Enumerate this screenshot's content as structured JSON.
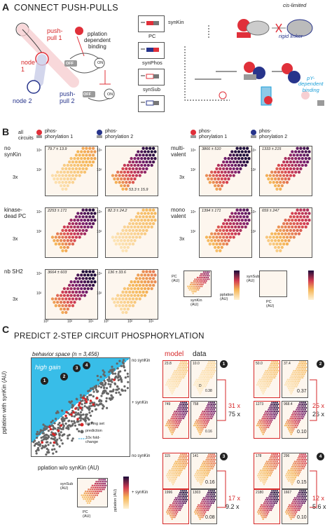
{
  "panelA": {
    "letter": "A",
    "title": "CONNECT PUSH-PULLS",
    "push_pull_1": "push-\npull 1",
    "push_pull_2": "push-\npull 2",
    "node1": "node\n1",
    "node2": "node 2",
    "pplation_dependent_binding": "pplation\ndependent\nbinding",
    "off": "OFF",
    "on": "ON",
    "parts": [
      "synKin",
      "PC",
      "synPhos",
      "synSub"
    ],
    "cis_limited": "cis-limited",
    "rigid_linker": "rigid linker",
    "py_dependent_binding": "pY-\ndependent\nbinding",
    "p": "P"
  },
  "panelB": {
    "letter": "B",
    "all_circuits": "all\ncircuits",
    "phos1": "phos-\nphorylation 1",
    "phos2": "phos-\nphorylation 2",
    "rows_left": [
      {
        "label": "no\nsynKin",
        "stat1": "79.7 ± 13.9",
        "stat2": "53.3 ± 15.9"
      },
      {
        "label": "kinase-\ndead PC",
        "stat1": "2253 ± 171",
        "stat2": "82.3 ± 24.2"
      },
      {
        "label": "nb SH2",
        "stat1": "3664 ± 603",
        "stat2": "136 ± 33.6"
      }
    ],
    "rows_right": [
      {
        "label": "multi-\nvalent",
        "stat1": "3866 ± 510",
        "stat2": "1333 ± 215"
      },
      {
        "label": "mono\nvalent",
        "stat1": "1394 ± 171",
        "stat2": "659 ± 247"
      }
    ],
    "tick_hi": "10⁴",
    "tick_mid": "10²",
    "tick_lo": "10⁰",
    "legend": {
      "pc_au": "PC\n(AU)",
      "synkin_au": "synKin\n(AU)",
      "pplation_au": "pplation\n(AU)",
      "synsub_au": "synSub\n(AU)",
      "pc_au2": "PC\n(AU)"
    },
    "copies": "3x"
  },
  "panelC": {
    "letter": "C",
    "title": "PREDICT 2-STEP CIRCUIT PHOSPHORYLATION",
    "behavior_space": "behavior space (n = 3,456)",
    "high_gain": "high gain",
    "ylabel": "pplation with synKin (AU)",
    "xlabel": "pplation w/o synKin (AU)",
    "legend": [
      "training set",
      "prediction",
      "10x fold-\nchange"
    ],
    "model": "model",
    "data": "data",
    "no_synkin": "no synKin",
    "plus_synkin": "+ synKin",
    "d_lbl": "D",
    "groups": [
      {
        "id": "1",
        "model_no": "23.8",
        "data_no": "10.0",
        "model_plus": "749",
        "data_plus": "758",
        "fold_model": "31 x",
        "fold_data": "75 x",
        "d_no": "0.38",
        "d_plus": "0.16"
      },
      {
        "id": "2",
        "model_no": "50.0",
        "data_no": "37.4",
        "model_plus": "1273",
        "data_plus": "968.4",
        "fold_model": "25 x",
        "fold_data": "26 x",
        "d_no": "0.37",
        "d_plus": "0.10"
      },
      {
        "id": "3",
        "model_no": "115",
        "data_no": "141",
        "model_plus": "1996",
        "data_plus": "1303",
        "fold_model": "17 x",
        "fold_data": "9.2 x",
        "d_no": "0.16",
        "d_plus": "0.08"
      },
      {
        "id": "4",
        "model_no": "178",
        "data_no": "296",
        "model_plus": "2180",
        "data_plus": "1667",
        "fold_model": "12 x",
        "fold_data": "5.6 x",
        "d_no": "0.15",
        "d_plus": "0.10"
      }
    ],
    "cbar_synsub": "synSub\n(AU)",
    "cbar_pc": "PC\n(AU)",
    "cbar_pplation": "pplation (AU)"
  }
}
